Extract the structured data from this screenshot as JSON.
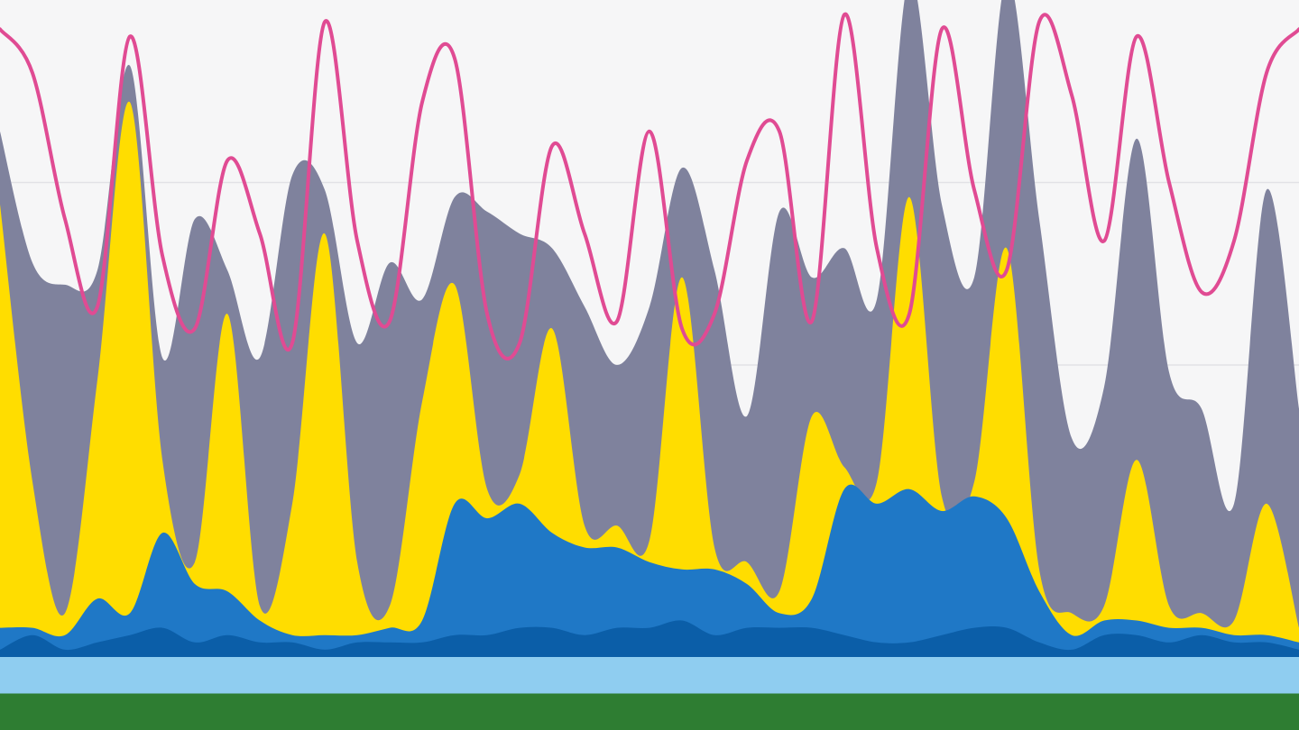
{
  "chart_data": {
    "type": "area",
    "stacked": true,
    "title": "",
    "xlabel": "",
    "ylabel": "",
    "x_range": [
      0,
      10
    ],
    "ylim": [
      0,
      100
    ],
    "grid": true,
    "legend": "none",
    "x": [
      0,
      0.25,
      0.5,
      0.75,
      1,
      1.25,
      1.5,
      1.75,
      2,
      2.25,
      2.5,
      2.75,
      3,
      3.25,
      3.5,
      3.75,
      4,
      4.25,
      4.5,
      4.75,
      5,
      5.25,
      5.5,
      5.75,
      6,
      6.25,
      6.5,
      6.75,
      7,
      7.25,
      7.5,
      7.75,
      8,
      8.25,
      8.5,
      8.75,
      9,
      9.25,
      9.5,
      9.75,
      10
    ],
    "series": [
      {
        "color": "#2e7d32",
        "values": [
          5,
          5,
          5,
          5,
          5,
          5,
          5,
          5,
          5,
          5,
          5,
          5,
          5,
          5,
          5,
          5,
          5,
          5,
          5,
          5,
          5,
          5,
          5,
          5,
          5,
          5,
          5,
          5,
          5,
          5,
          5,
          5,
          5,
          5,
          5,
          5,
          5,
          5,
          5,
          5,
          5
        ]
      },
      {
        "color": "#8fcdf0",
        "values": [
          5,
          5,
          5,
          5,
          5,
          5,
          5,
          5,
          5,
          5,
          5,
          5,
          5,
          5,
          5,
          5,
          5,
          5,
          5,
          5,
          5,
          5,
          5,
          5,
          5,
          5,
          5,
          5,
          5,
          5,
          5,
          5,
          5,
          5,
          5,
          5,
          5,
          5,
          5,
          5,
          5
        ]
      },
      {
        "color": "#0b5ea8",
        "values": [
          1,
          3,
          1,
          2,
          3,
          4,
          2,
          3,
          2,
          2,
          1,
          2,
          2,
          2,
          3,
          3,
          4,
          4,
          3,
          4,
          4,
          5,
          3,
          4,
          4,
          4,
          3,
          2,
          2,
          3,
          4,
          4,
          2,
          1,
          3,
          3,
          2,
          3,
          2,
          2,
          1
        ]
      },
      {
        "color": "#1f78c6",
        "values": [
          3,
          1,
          2,
          6,
          3,
          13,
          8,
          6,
          3,
          1,
          2,
          1,
          2,
          3,
          18,
          16,
          17,
          13,
          12,
          11,
          9,
          7,
          9,
          6,
          2,
          4,
          20,
          19,
          21,
          17,
          18,
          15,
          7,
          2,
          2,
          2,
          2,
          1,
          1,
          1,
          1
        ]
      },
      {
        "color": "#ffdd00",
        "values": [
          58,
          20,
          3,
          30,
          70,
          10,
          3,
          38,
          2,
          18,
          55,
          10,
          3,
          30,
          30,
          4,
          4,
          28,
          3,
          3,
          3,
          40,
          3,
          3,
          3,
          25,
          3,
          3,
          40,
          2,
          2,
          37,
          3,
          3,
          2,
          22,
          3,
          2,
          2,
          18,
          2
        ]
      },
      {
        "color": "#7f829d",
        "values": [
          10,
          30,
          45,
          15,
          5,
          14,
          47,
          6,
          34,
          45,
          6,
          30,
          47,
          14,
          12,
          38,
          33,
          11,
          30,
          22,
          32,
          15,
          38,
          20,
          52,
          19,
          30,
          25,
          30,
          40,
          28,
          37,
          48,
          24,
          30,
          44,
          32,
          28,
          16,
          43,
          30
        ]
      }
    ],
    "line_series": [
      {
        "color": "#e04b93",
        "values": [
          96,
          90,
          70,
          58,
          95,
          65,
          55,
          78,
          68,
          53,
          97,
          67,
          56,
          86,
          92,
          57,
          53,
          80,
          68,
          56,
          82,
          55,
          57,
          78,
          82,
          56,
          98,
          66,
          57,
          96,
          74,
          63,
          97,
          87,
          67,
          95,
          75,
          60,
          67,
          90,
          96
        ]
      }
    ]
  }
}
